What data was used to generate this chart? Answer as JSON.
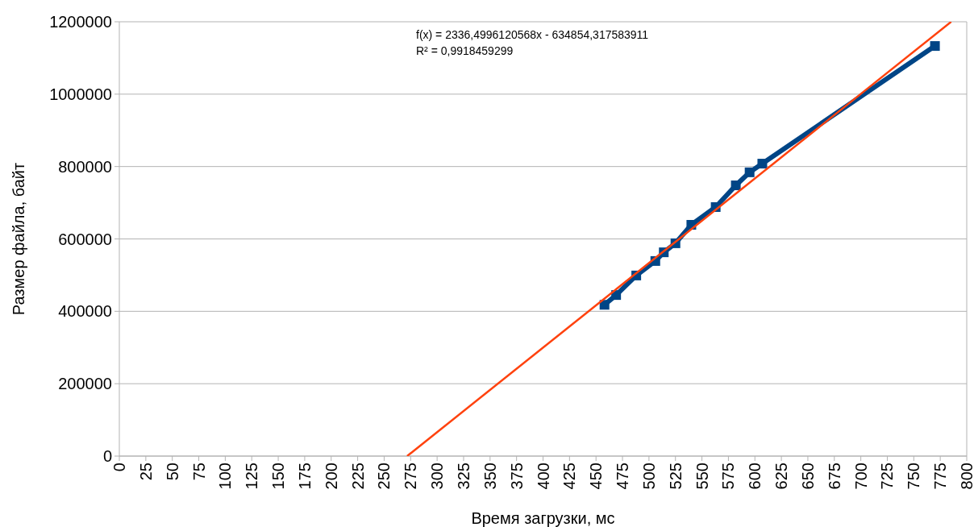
{
  "chart_data": {
    "type": "line",
    "xlabel": "Время загрузки, мс",
    "ylabel": "Размер файла, байт",
    "annotations": [
      "f(x) = 2336,4996120568x - 634854,317583911",
      "R² = 0,9918459299"
    ],
    "series": [
      {
        "color": "#004586",
        "marker": "square",
        "x": [
          458,
          469,
          488,
          506,
          514,
          525,
          540,
          563,
          582,
          595,
          607,
          770
        ],
        "values": [
          418000,
          445000,
          499000,
          539000,
          563000,
          588000,
          639000,
          688000,
          748000,
          784000,
          808000,
          1133000
        ]
      },
      {
        "color": "#ff420e",
        "marker": "none",
        "x": [
          271.7,
          785.3
        ],
        "values": [
          0,
          1200000
        ]
      }
    ],
    "xlim": [
      0,
      800
    ],
    "xticks": [
      0,
      25,
      50,
      75,
      100,
      125,
      150,
      175,
      200,
      225,
      250,
      275,
      300,
      325,
      350,
      375,
      400,
      425,
      450,
      475,
      500,
      525,
      550,
      575,
      600,
      625,
      650,
      675,
      700,
      725,
      750,
      775,
      800
    ],
    "ylim": [
      0,
      1200000
    ],
    "yticks": [
      0,
      200000,
      400000,
      600000,
      800000,
      1000000,
      1200000
    ],
    "grid": "y"
  }
}
